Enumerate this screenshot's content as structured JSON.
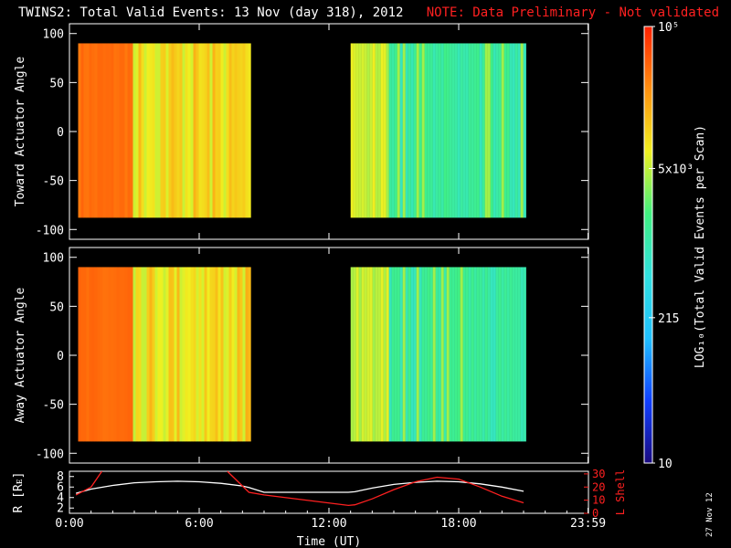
{
  "header": {
    "title": "TWINS2: Total Valid Events: 13 Nov (day 318), 2012",
    "note": "NOTE: Data Preliminary - Not validated"
  },
  "date_stamp": "27 Nov 12",
  "colors": {
    "background": "#000000",
    "note": "#ff2020",
    "r_line": "#ffffff",
    "lshell_line": "#ff2020",
    "colorscale": [
      "#1a0a80",
      "#1040ff",
      "#20c0ff",
      "#30e0e0",
      "#40f080",
      "#f0f020",
      "#ff9010",
      "#ff2000"
    ]
  },
  "chart_data": [
    {
      "type": "heatmap",
      "panel": "toward",
      "ylabel": "Toward Actuator Angle",
      "ylim": [
        -110,
        110
      ],
      "yticks": [
        100,
        50,
        0,
        -50,
        -100
      ],
      "xlim": [
        0,
        24
      ],
      "data_y_range": [
        -88,
        90
      ],
      "segments": [
        {
          "start_hr": 0.4,
          "end_hr": 8.3,
          "log_level": 4.6,
          "noisy_from_hr": 2.9
        },
        {
          "start_hr": 13.0,
          "end_hr": 21.0,
          "log_level": 3.6,
          "blue_from_hr": 14.7
        }
      ]
    },
    {
      "type": "heatmap",
      "panel": "away",
      "ylabel": "Away Actuator Angle",
      "ylim": [
        -110,
        110
      ],
      "yticks": [
        100,
        50,
        0,
        -50,
        -100
      ],
      "xlim": [
        0,
        24
      ],
      "data_y_range": [
        -88,
        90
      ],
      "segments": [
        {
          "start_hr": 0.4,
          "end_hr": 8.3,
          "log_level": 4.6,
          "noisy_from_hr": 2.9
        },
        {
          "start_hr": 13.0,
          "end_hr": 21.0,
          "log_level": 3.6,
          "blue_from_hr": 14.7
        }
      ]
    },
    {
      "type": "line",
      "panel": "ephemeris",
      "ylabel": "R [Rᴇ]",
      "yticks": [
        "8",
        "6",
        "4",
        "2"
      ],
      "ylim": [
        1,
        9
      ],
      "y2label": "L Shell",
      "y2ticks": [
        "30",
        "20",
        "10",
        "0"
      ],
      "y2lim": [
        0,
        32
      ],
      "xlabel": "Time (UT)",
      "xticks": [
        "0:00",
        "6:00",
        "12:00",
        "18:00",
        "23:59"
      ],
      "x_tick_hours": [
        0,
        6,
        12,
        18,
        23.98
      ],
      "series": [
        {
          "name": "R",
          "axis": "left",
          "x": [
            0.3,
            1,
            2,
            3,
            4,
            5,
            6,
            7,
            8,
            8.3,
            9,
            12.9,
            13.2,
            14,
            15,
            16,
            17,
            18,
            19,
            20,
            21
          ],
          "y": [
            4.8,
            5.6,
            6.3,
            6.8,
            7.0,
            7.1,
            7.0,
            6.7,
            6.2,
            5.9,
            5.0,
            5.0,
            5.1,
            5.8,
            6.5,
            6.9,
            7.1,
            7.0,
            6.6,
            6.0,
            5.2
          ]
        },
        {
          "name": "L Shell",
          "axis": "right",
          "x": [
            0.3,
            1.0,
            1.5
          ],
          "y": [
            14.0,
            20.0,
            32.0
          ]
        },
        {
          "name": "L Shell",
          "axis": "right",
          "x": [
            7.3,
            8.3,
            9,
            12.9,
            13.2,
            14,
            15,
            16,
            17,
            18,
            19,
            20,
            21
          ],
          "y": [
            32.0,
            16.0,
            14.0,
            6.0,
            6.5,
            11.0,
            18.0,
            24.0,
            27.5,
            26.0,
            20.0,
            13.0,
            8.0
          ]
        }
      ]
    },
    {
      "type": "heatmap",
      "panel": "colorbar",
      "ylabel": "LOG₁₀(Total Valid Events per Scan)",
      "tick_labels": [
        "10⁵",
        "5x10³",
        "215",
        "10"
      ],
      "log_ticks": [
        5.0,
        3.699,
        2.332,
        1.0
      ],
      "log_range": [
        1.0,
        5.0
      ]
    }
  ]
}
